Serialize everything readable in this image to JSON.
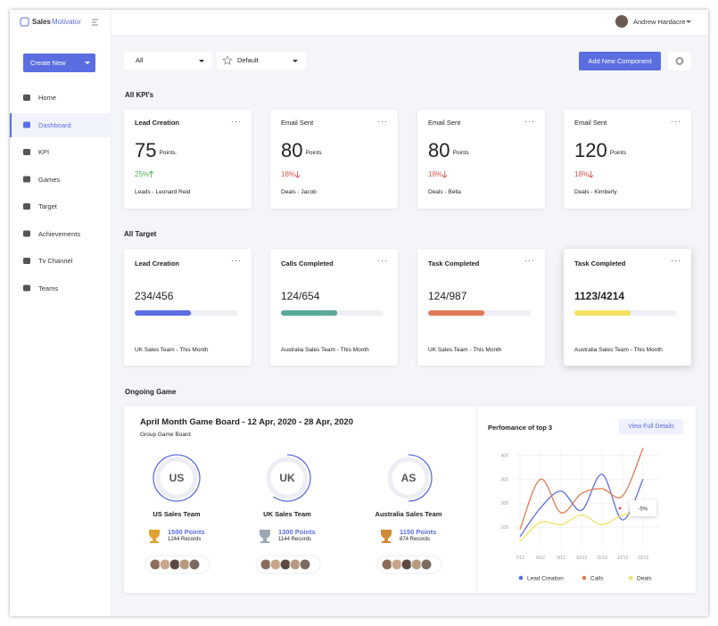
{
  "sidebar": {
    "brand_1": "Sales",
    "brand_2": "Motivator",
    "create_button": "Create New",
    "nav": [
      "Home",
      "Dashboard",
      "KPI",
      "Games",
      "Target",
      "Achievements",
      "Tv Channel",
      "Teams"
    ],
    "active": 1
  },
  "topbar": {
    "user": "Andrew Hardacre"
  },
  "filters": {
    "filter_1": "All",
    "filter_2": "Default",
    "add_button": "Add New Component"
  },
  "kpi_section": {
    "title": "All KPI's",
    "cards": [
      {
        "title": "Lead Creation",
        "value": 75,
        "unit": "Points.",
        "change": "25%",
        "trend": "up",
        "footer": "Leads - Leonard Reid"
      },
      {
        "title": "Email Sent",
        "value": 80,
        "unit": "Points",
        "change": "18%",
        "trend": "down",
        "footer": "Deals - Jacob"
      },
      {
        "title": "Email Sent",
        "value": 80,
        "unit": "Points",
        "change": "18%",
        "trend": "down",
        "footer": "Deals - Bella"
      },
      {
        "title": "Email Sent",
        "value": 120,
        "unit": "Points",
        "change": "18%",
        "trend": "down",
        "footer": "Deals - Kimberly"
      }
    ]
  },
  "target_section": {
    "title": "All Target",
    "cards": [
      {
        "title": "Lead Creation",
        "progress": "234/456",
        "fill": 55,
        "color": "#5b6ee1",
        "footer": "UK Sales Team  -  This Month"
      },
      {
        "title": "Calls Completed",
        "progress": "124/654",
        "fill": 55,
        "color": "#5aa89a",
        "footer": "Australia Sales Team  -  This Month"
      },
      {
        "title": "Task Completed",
        "progress": "124/987",
        "fill": 55,
        "color": "#e07a5a",
        "footer": "UK Sales Team  -  This Month"
      },
      {
        "title": "Task Completed",
        "progress": "1123/4214",
        "fill": 55,
        "color": "#f5e064",
        "footer": "Australia Sales Team  -  This Month"
      }
    ]
  },
  "game": {
    "title": "Ongoing Game",
    "board_title": "April Month Game Board - 12 Apr, 2020 -  28 Apr, 2020",
    "subtitle": "Group Game Board",
    "teams": [
      {
        "code": "US",
        "name": "US Sales Team",
        "points": "1500 Points",
        "records": "1244 Records",
        "trophy": "#e0a030",
        "ring": 100
      },
      {
        "code": "UK",
        "name": "UK Sales Team",
        "points": "1300 Points",
        "records": "1144 Records",
        "trophy": "#9aa7b5",
        "ring": 60
      },
      {
        "code": "AS",
        "name": "Australia Sales Team",
        "points": "1150 Points",
        "records": "874 Records",
        "trophy": "#d08a3a",
        "ring": 50
      }
    ]
  },
  "performance": {
    "title": "Perfomance of top 3",
    "button": "View Full Details",
    "categories": [
      "7/12",
      "8/12",
      "9/12",
      "10/12",
      "11/12",
      "12/12",
      "13/12"
    ],
    "ylim": [
      0,
      410
    ],
    "yticks": [
      100,
      200,
      300,
      400
    ],
    "annotation": "-5%",
    "series": [
      {
        "name": "Lead Creation",
        "color": "#5b6ee1",
        "values": [
          60,
          180,
          250,
          170,
          320,
          130,
          300
        ]
      },
      {
        "name": "Calls",
        "color": "#e07a50",
        "values": [
          90,
          300,
          160,
          240,
          260,
          230,
          430
        ]
      },
      {
        "name": "Deals",
        "color": "#f5e064",
        "values": [
          40,
          120,
          110,
          150,
          110,
          150,
          160
        ]
      }
    ]
  }
}
